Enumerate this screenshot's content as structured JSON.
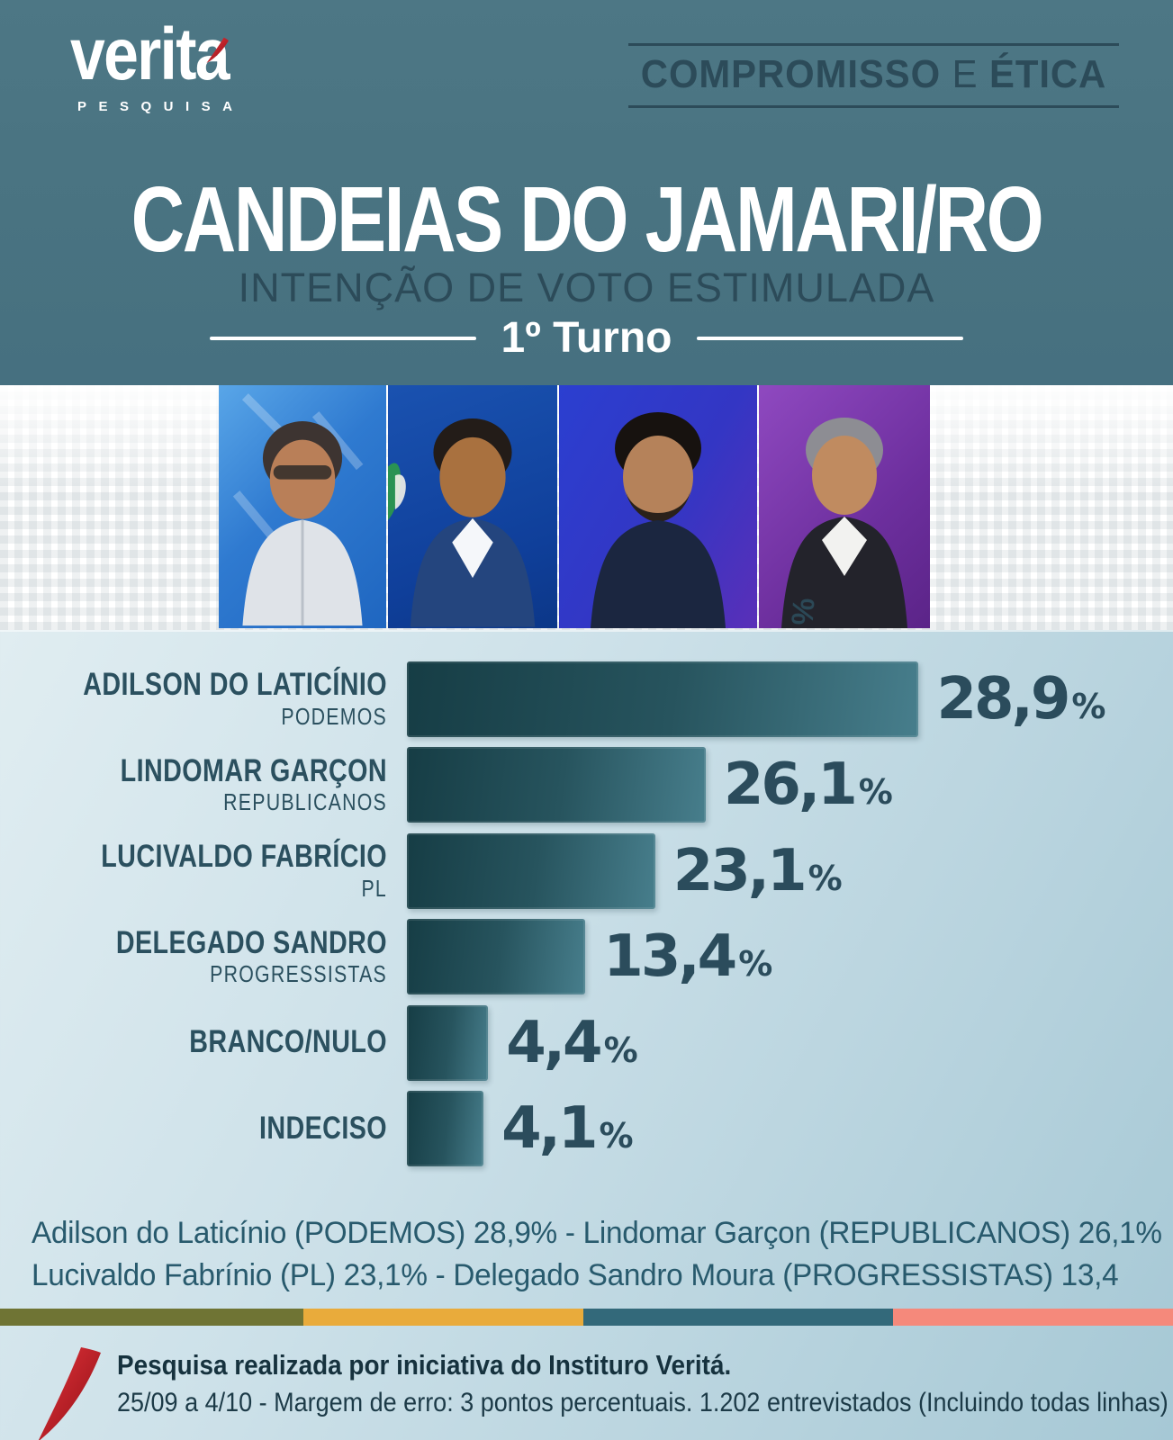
{
  "logo": {
    "text": "veritá",
    "display_base": "verita",
    "sub": "PESQUISA"
  },
  "tagline": {
    "word1": "COMPROMISSO",
    "word2": "E",
    "word3": "ÉTICA"
  },
  "header": {
    "title": "CANDEIAS DO JAMARI/RO",
    "subtitle": "INTENÇÃO DE VOTO ESTIMULADA",
    "round_label": "1º Turno"
  },
  "watermark": "%",
  "chart_data": {
    "type": "bar",
    "orientation": "horizontal",
    "unit": "%",
    "xlim": [
      0,
      30
    ],
    "grid": false,
    "legend": false,
    "rows": [
      {
        "name": "ADILSON DO LATICÍNIO",
        "party": "PODEMOS",
        "value": 28.9,
        "label": "28,9",
        "width_pct": 66.8
      },
      {
        "name": "LINDOMAR GARÇON",
        "party": "REPUBLICANOS",
        "value": 26.1,
        "label": "26,1",
        "width_pct": 39.0
      },
      {
        "name": "LUCIVALDO FABRÍCIO",
        "party": "PL",
        "value": 23.1,
        "label": "23,1",
        "width_pct": 32.4
      },
      {
        "name": "DELEGADO SANDRO",
        "party": "PROGRESSISTAS",
        "value": 13.4,
        "label": "13,4",
        "width_pct": 23.3
      },
      {
        "name": "BRANCO/NULO",
        "party": "",
        "value": 4.4,
        "label": "4,4",
        "width_pct": 10.6
      },
      {
        "name": "INDECISO",
        "party": "",
        "value": 4.1,
        "label": "4,1",
        "width_pct": 10.0
      }
    ],
    "bar_color_start": "#163d45",
    "bar_color_end": "#477e8c"
  },
  "summary": {
    "line1": "Adilson do Laticínio (PODEMOS) 28,9% - Lindomar Garçon (REPUBLICANOS) 26,1%",
    "line2": "Lucivaldo Fabrínio (PL) 23,1% - Delegado Sandro Moura (PROGRESSISTAS) 13,4"
  },
  "stripe": {
    "segments": [
      {
        "color": "#6f7434",
        "width_pct": 25.9
      },
      {
        "color": "#e9ab3b",
        "width_pct": 23.8
      },
      {
        "color": "#33697a",
        "width_pct": 26.4
      },
      {
        "color": "#f5897b",
        "width_pct": 23.9
      }
    ]
  },
  "footer": {
    "line1": "Pesquisa realizada por iniciativa do Instituro Veritá.",
    "line2": "25/09 a 4/10 - Margem de erro: 3 pontos percentuais. 1.202 entrevistados (Incluindo todas linhas)"
  },
  "colors": {
    "header_bg": "#497381",
    "dark_slate": "#2c4b59",
    "panel_top": "#e0edf1",
    "panel_bottom": "#a6c8d5",
    "logo_accent_red": "#d92b31"
  }
}
